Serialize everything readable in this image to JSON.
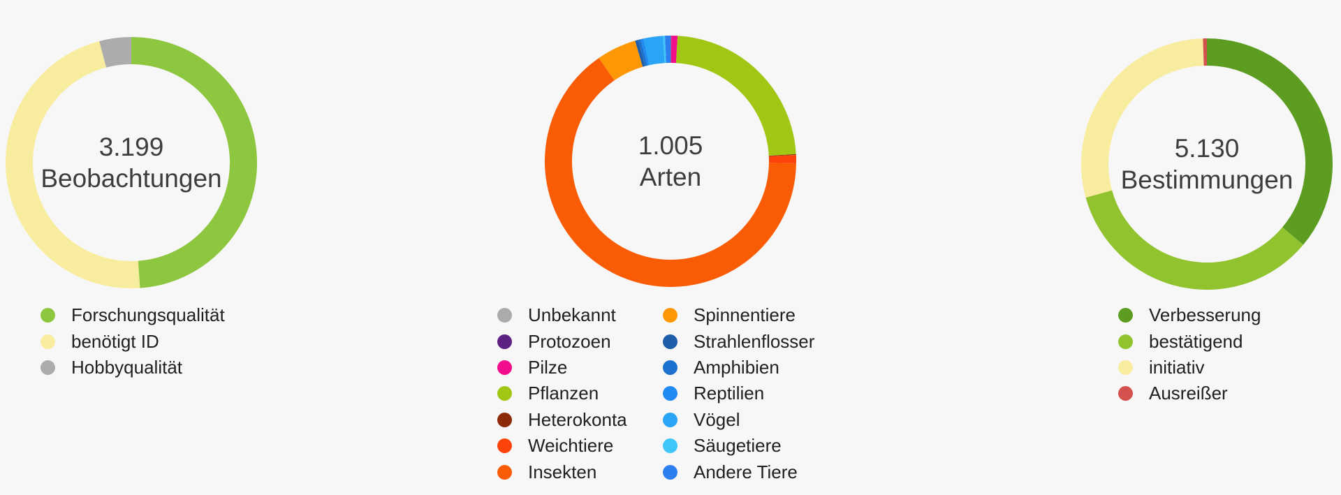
{
  "page": {
    "background_color": "#f7f7f7",
    "text_color": "#3d3d3d",
    "legend_text_color": "#1f1f1f"
  },
  "chart_data": [
    {
      "type": "pie",
      "subtype": "donut",
      "id": "observations",
      "center_value": "3.199",
      "center_label": "Beobachtungen",
      "start_angle_deg": 0,
      "direction": "clockwise",
      "legend_position": "below",
      "segments": [
        {
          "label": "Forschungsqualität",
          "color": "#8dc63f",
          "percent": 48.9
        },
        {
          "label": "benötigt ID",
          "color": "#f8ec9e",
          "percent": 47.0
        },
        {
          "label": "Hobbyqualität",
          "color": "#acacac",
          "percent": 4.1
        }
      ]
    },
    {
      "type": "pie",
      "subtype": "donut",
      "id": "species",
      "center_value": "1.005",
      "center_label": "Arten",
      "start_angle_deg": 0,
      "direction": "clockwise",
      "legend_position": "below",
      "segments": [
        {
          "label": "Unbekannt",
          "color": "#ababab",
          "percent": 0.05
        },
        {
          "label": "Protozoen",
          "color": "#5d2184",
          "percent": 0.05
        },
        {
          "label": "Pilze",
          "color": "#f20d8c",
          "percent": 0.8
        },
        {
          "label": "Pflanzen",
          "color": "#a2c614",
          "percent": 23.2
        },
        {
          "label": "Heterokonta",
          "color": "#8c2a08",
          "percent": 0.1
        },
        {
          "label": "Weichtiere",
          "color": "#fc430a",
          "percent": 1.05
        },
        {
          "label": "Insekten",
          "color": "#f95c05",
          "percent": 65.1
        },
        {
          "label": "Spinnentiere",
          "color": "#fd9704",
          "percent": 5.1
        },
        {
          "label": "Strahlenflosser",
          "color": "#1e5ea9",
          "percent": 0.4
        },
        {
          "label": "Amphibien",
          "color": "#1c70ce",
          "percent": 0.35
        },
        {
          "label": "Reptilien",
          "color": "#2089f2",
          "percent": 0.35
        },
        {
          "label": "Vögel",
          "color": "#2aa4f5",
          "percent": 2.5
        },
        {
          "label": "Säugetiere",
          "color": "#3dc6f7",
          "percent": 0.25
        },
        {
          "label": "Andere Tiere",
          "color": "#2d7ff0",
          "percent": 0.7
        }
      ]
    },
    {
      "type": "pie",
      "subtype": "donut",
      "id": "identifications",
      "center_value": "5.130",
      "center_label": "Bestimmungen",
      "start_angle_deg": 0,
      "direction": "clockwise",
      "legend_position": "below",
      "segments": [
        {
          "label": "Verbesserung",
          "color": "#5b9c21",
          "percent": 36.1
        },
        {
          "label": "bestätigend",
          "color": "#91c32f",
          "percent": 34.6
        },
        {
          "label": "initiativ",
          "color": "#f8ec9e",
          "percent": 28.8
        },
        {
          "label": "Ausreißer",
          "color": "#d4524e",
          "percent": 0.5
        }
      ]
    }
  ]
}
